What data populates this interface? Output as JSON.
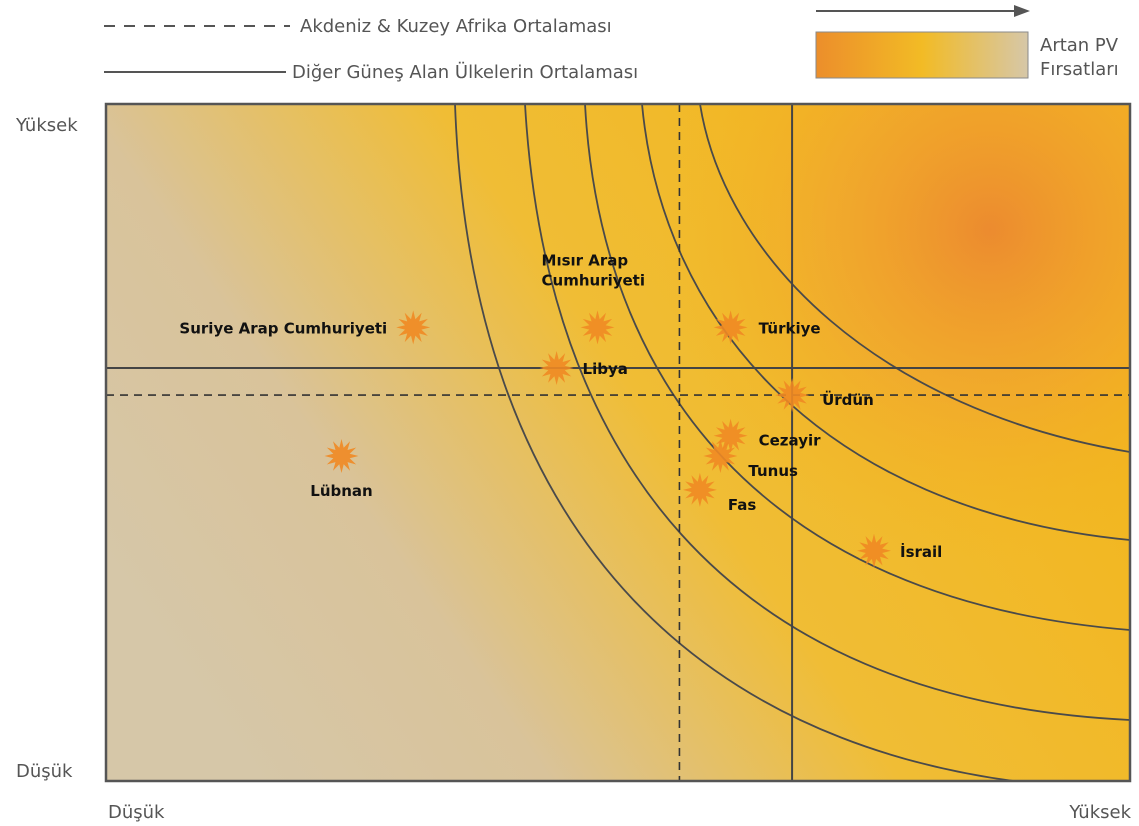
{
  "legend": {
    "dashed_label": "Akdeniz & Kuzey Afrika Ortalaması",
    "solid_label": "Diğer Güneş Alan Ülkelerin Ortalaması",
    "gradient_label_line1": "Artan PV",
    "gradient_label_line2": "Fırsatları"
  },
  "axes": {
    "y_high": "Yüksek",
    "y_low": "Düşük",
    "x_low": "Düşük",
    "x_high": "Yüksek"
  },
  "colors": {
    "low": "#d6c7a8",
    "mid": "#f2bb25",
    "high": "#ec8e2b",
    "star": "#f08a24",
    "line": "#4a4a4a"
  },
  "chart_data": {
    "type": "scatter",
    "title": "",
    "xlabel": "",
    "ylabel": "",
    "xlim": [
      0,
      100
    ],
    "ylim": [
      0,
      100
    ],
    "x_tick_labels": [
      "Düşük",
      "Yüksek"
    ],
    "y_tick_labels": [
      "Düşük",
      "Yüksek"
    ],
    "reference_lines": {
      "dashed_vertical_x": 56,
      "dashed_horizontal_y": 57,
      "solid_vertical_x": 67,
      "solid_horizontal_y": 61
    },
    "points": [
      {
        "label": "Suriye Arap Cumhuriyeti",
        "x": 30,
        "y": 67
      },
      {
        "label": "Lübnan",
        "x": 23,
        "y": 48
      },
      {
        "label": "Mısır Arap Cumhuriyeti",
        "x": 48,
        "y": 67
      },
      {
        "label": "Libya",
        "x": 44,
        "y": 61
      },
      {
        "label": "Türkiye",
        "x": 61,
        "y": 67
      },
      {
        "label": "Ürdün",
        "x": 67,
        "y": 57
      },
      {
        "label": "Cezayir",
        "x": 61,
        "y": 51
      },
      {
        "label": "Tunus",
        "x": 60,
        "y": 48
      },
      {
        "label": "Fas",
        "x": 58,
        "y": 43
      },
      {
        "label": "İsrail",
        "x": 75,
        "y": 34
      }
    ]
  }
}
